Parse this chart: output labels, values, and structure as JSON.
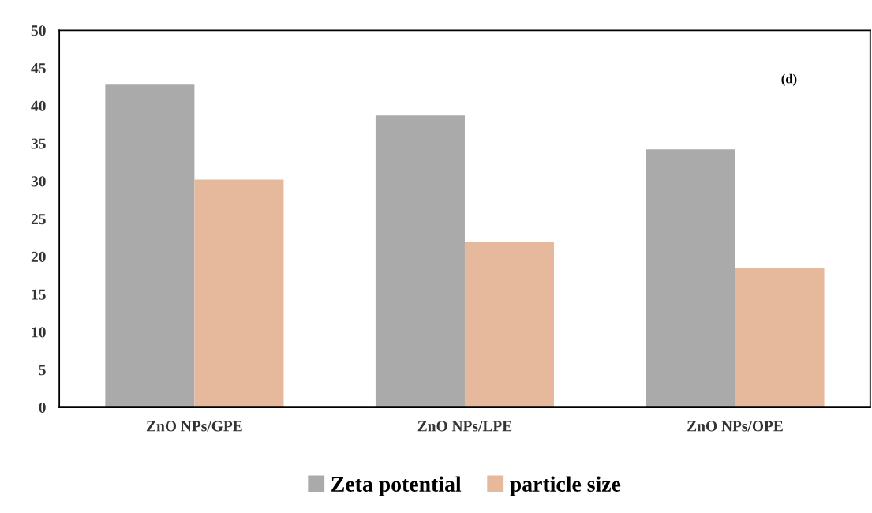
{
  "chart_data": {
    "type": "bar",
    "categories": [
      "ZnO NPs/GPE",
      "ZnO NPs/LPE",
      "ZnO NPs/OPE"
    ],
    "series": [
      {
        "name": "Zeta potential",
        "color": "#aaaaaa",
        "values": [
          42.8,
          38.7,
          34.2
        ]
      },
      {
        "name": "particle size",
        "color": "#e6b99c",
        "values": [
          30.2,
          22.0,
          18.5
        ]
      }
    ],
    "ylim": [
      0,
      50
    ],
    "yticks": [
      0,
      5,
      10,
      15,
      20,
      25,
      30,
      35,
      40,
      45,
      50
    ],
    "annotations": [
      "(d)"
    ],
    "legend": "bottom",
    "grid": false
  }
}
